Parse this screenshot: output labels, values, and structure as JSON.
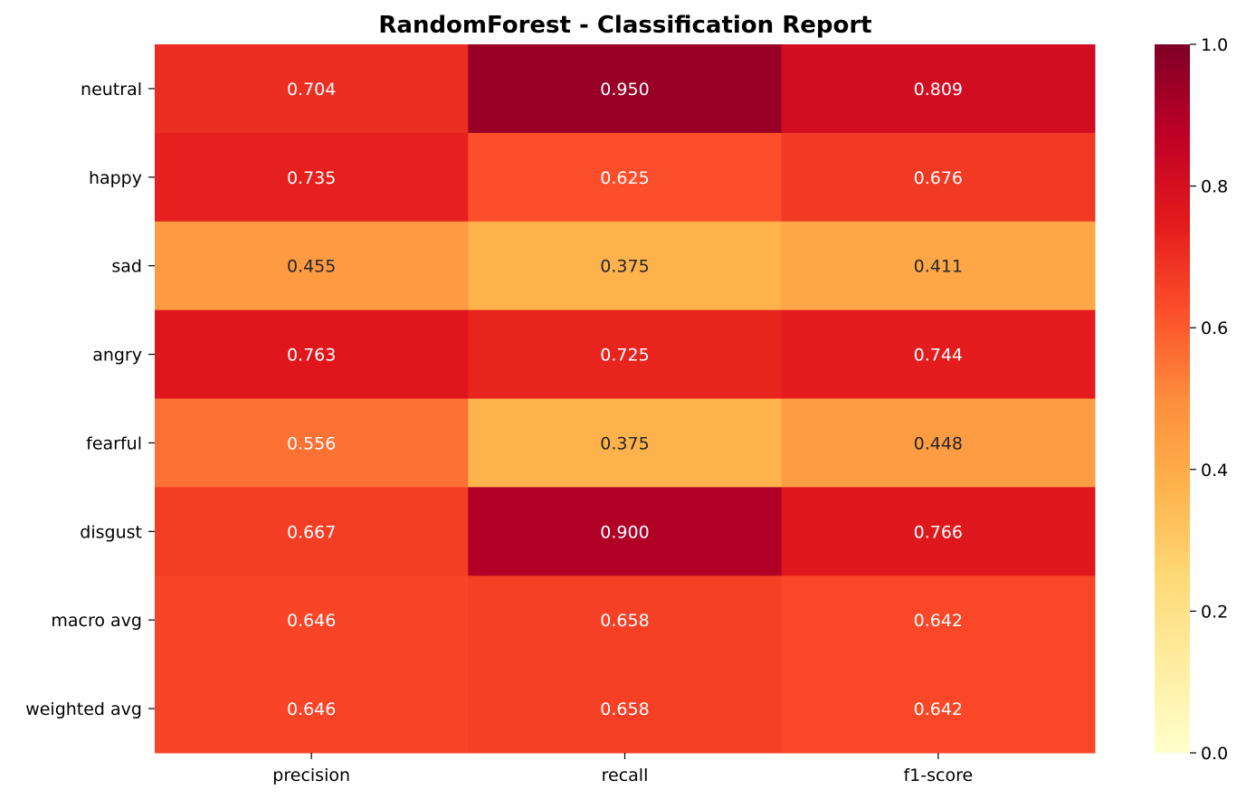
{
  "chart_data": {
    "type": "heatmap",
    "title": "RandomForest - Classification Report",
    "colormap": "YlOrRd",
    "rows": [
      "neutral",
      "happy",
      "sad",
      "angry",
      "fearful",
      "disgust",
      "macro avg",
      "weighted avg"
    ],
    "columns": [
      "precision",
      "recall",
      "f1-score"
    ],
    "values": [
      [
        0.704,
        0.95,
        0.809
      ],
      [
        0.735,
        0.625,
        0.676
      ],
      [
        0.455,
        0.375,
        0.411
      ],
      [
        0.763,
        0.725,
        0.744
      ],
      [
        0.556,
        0.375,
        0.448
      ],
      [
        0.667,
        0.9,
        0.766
      ],
      [
        0.646,
        0.658,
        0.642
      ],
      [
        0.646,
        0.658,
        0.642
      ]
    ],
    "labels": [
      [
        "0.704",
        "0.950",
        "0.809"
      ],
      [
        "0.735",
        "0.625",
        "0.676"
      ],
      [
        "0.455",
        "0.375",
        "0.411"
      ],
      [
        "0.763",
        "0.725",
        "0.744"
      ],
      [
        "0.556",
        "0.375",
        "0.448"
      ],
      [
        "0.667",
        "0.900",
        "0.766"
      ],
      [
        "0.646",
        "0.658",
        "0.642"
      ],
      [
        "0.646",
        "0.658",
        "0.642"
      ]
    ],
    "vmin": 0.0,
    "vmax": 1.0,
    "colorbar_ticks": [
      "0.0",
      "0.2",
      "0.4",
      "0.6",
      "0.8",
      "1.0"
    ]
  }
}
